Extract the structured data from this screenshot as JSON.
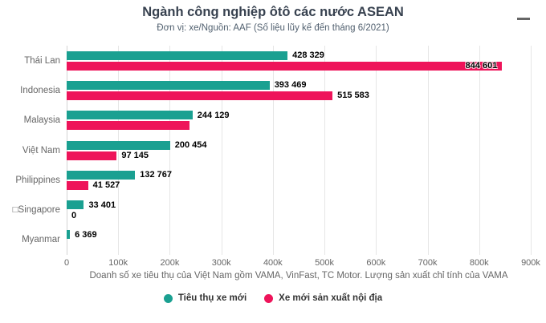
{
  "chart": {
    "title": "Ngành công nghiệp ôtô các nước ASEAN",
    "subtitle": "Đơn vị: xe/Nguồn: AAF (Số liệu lũy kế đến tháng 6/2021)",
    "xaxis_title": "Doanh số xe tiêu thụ của Việt Nam gồm VAMA, VinFast, TC Motor. Lượng sản xuất chỉ tính của VAMA",
    "menu_icon": "hamburger-menu-icon",
    "grid_color": "#e6e6e6",
    "axis_color": "#d4d4d4"
  },
  "chart_data": {
    "type": "bar",
    "orientation": "horizontal",
    "title": "Ngành công nghiệp ôtô các nước ASEAN",
    "subtitle": "Đơn vị: xe/Nguồn: AAF (Số liệu lũy kế đến tháng 6/2021)",
    "xlabel": "Doanh số xe tiêu thụ của Việt Nam gồm VAMA, VinFast, TC Motor. Lượng sản xuất chỉ tính của VAMA",
    "xlim": [
      0,
      900000
    ],
    "grid": true,
    "legend_position": "bottom",
    "categories": [
      "Thái Lan",
      "Indonesia",
      "Malaysia",
      "Việt Nam",
      "Philippines",
      "□Singapore",
      "Myanmar"
    ],
    "ticks": [
      0,
      100000,
      200000,
      300000,
      400000,
      500000,
      600000,
      700000,
      800000,
      900000
    ],
    "tick_labels": [
      "0",
      "100k",
      "200k",
      "300k",
      "400k",
      "500k",
      "600k",
      "700k",
      "800k",
      "900k"
    ],
    "series": [
      {
        "name": "Tiêu thụ xe mới",
        "color": "#1aa091",
        "values": [
          428329,
          393469,
          244129,
          200454,
          132767,
          33401,
          6369
        ],
        "labels": [
          "428 329",
          "393 469",
          "244 129",
          "200 454",
          "132 767",
          "33 401",
          "6 369"
        ],
        "label_inside": [
          false,
          false,
          false,
          false,
          false,
          false,
          false
        ]
      },
      {
        "name": "Xe mới sản xuất nội địa",
        "color": "#ee145a",
        "values": [
          844601,
          515583,
          239000,
          97145,
          41527,
          0,
          null
        ],
        "labels": [
          "844 601",
          "515 583",
          "",
          "97 145",
          "41 527",
          "0",
          ""
        ],
        "label_inside": [
          true,
          false,
          false,
          false,
          false,
          false,
          false
        ]
      }
    ]
  }
}
